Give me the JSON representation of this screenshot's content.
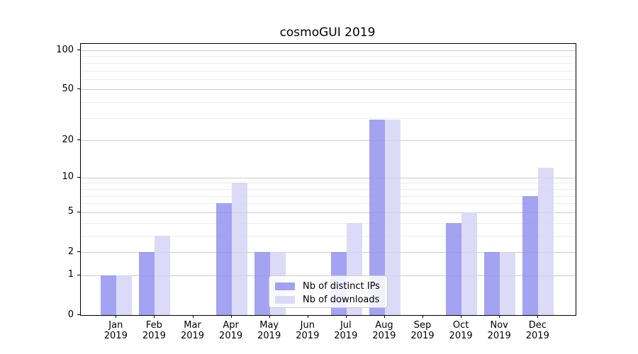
{
  "title": "cosmoGUI 2019",
  "chart_data": {
    "type": "bar",
    "title": "cosmoGUI 2019",
    "categories": [
      "Jan",
      "Feb",
      "Mar",
      "Apr",
      "May",
      "Jun",
      "Jul",
      "Aug",
      "Sep",
      "Oct",
      "Nov",
      "Dec"
    ],
    "year_label": "2019",
    "series": [
      {
        "name": "Nb of distinct IPs",
        "color": "#8f8fef",
        "values": [
          1,
          2,
          0,
          6,
          2,
          0,
          2,
          29,
          0,
          4,
          2,
          7
        ]
      },
      {
        "name": "Nb of downloads",
        "color": "#d3d3f6",
        "values": [
          1,
          3,
          0,
          9,
          2,
          0,
          4,
          29,
          0,
          5,
          2,
          12
        ]
      }
    ],
    "y_scale": "log10(value+1)",
    "ylim": [
      0,
      101
    ],
    "y_ticks": [
      0,
      1,
      2,
      5,
      10,
      20,
      50,
      100
    ],
    "y_minor_ticks": [
      3,
      4,
      6,
      7,
      8,
      9,
      30,
      40,
      60,
      70,
      80,
      90
    ],
    "grid": "horizontal",
    "legend_position": "lower center",
    "xlabel": "",
    "ylabel": ""
  }
}
